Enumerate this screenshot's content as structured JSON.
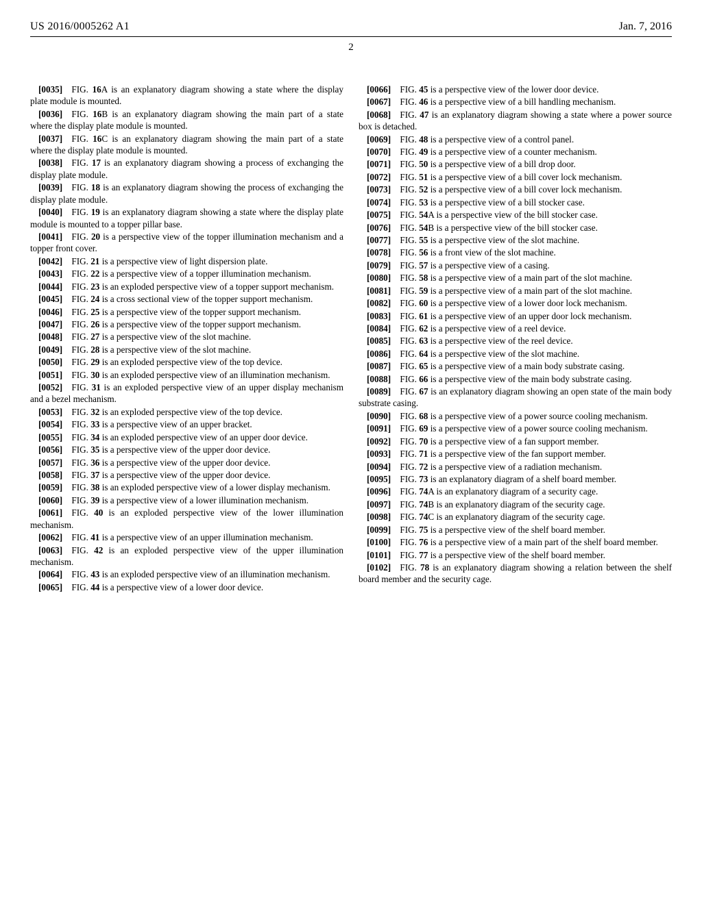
{
  "header": {
    "pubnum": "US 2016/0005262 A1",
    "pubdate": "Jan. 7, 2016",
    "pagenum": "2"
  },
  "entries": [
    {
      "id": "[0035]",
      "fig": "16",
      "suffix": "A",
      "text": " is an explanatory diagram showing a state where the display plate module is mounted."
    },
    {
      "id": "[0036]",
      "fig": "16",
      "suffix": "B",
      "text": " is an explanatory diagram showing the main part of a state where the display plate module is mounted."
    },
    {
      "id": "[0037]",
      "fig": "16",
      "suffix": "C",
      "text": " is an explanatory diagram showing the main part of a state where the display plate module is mounted."
    },
    {
      "id": "[0038]",
      "fig": "17",
      "suffix": "",
      "text": " is an explanatory diagram showing a process of exchanging the display plate module."
    },
    {
      "id": "[0039]",
      "fig": "18",
      "suffix": "",
      "text": " is an explanatory diagram showing the process of exchanging the display plate module."
    },
    {
      "id": "[0040]",
      "fig": "19",
      "suffix": "",
      "text": " is an explanatory diagram showing a state where the display plate module is mounted to a topper pillar base."
    },
    {
      "id": "[0041]",
      "fig": "20",
      "suffix": "",
      "text": " is a perspective view of the topper illumination mechanism and a topper front cover."
    },
    {
      "id": "[0042]",
      "fig": "21",
      "suffix": "",
      "text": " is a perspective view of light dispersion plate."
    },
    {
      "id": "[0043]",
      "fig": "22",
      "suffix": "",
      "text": " is a perspective view of a topper illumination mechanism."
    },
    {
      "id": "[0044]",
      "fig": "23",
      "suffix": "",
      "text": " is an exploded perspective view of a topper support mechanism."
    },
    {
      "id": "[0045]",
      "fig": "24",
      "suffix": "",
      "text": " is a cross sectional view of the topper support mechanism."
    },
    {
      "id": "[0046]",
      "fig": "25",
      "suffix": "",
      "text": " is a perspective view of the topper support mechanism."
    },
    {
      "id": "[0047]",
      "fig": "26",
      "suffix": "",
      "text": " is a perspective view of the topper support mechanism."
    },
    {
      "id": "[0048]",
      "fig": "27",
      "suffix": "",
      "text": " is a perspective view of the slot machine."
    },
    {
      "id": "[0049]",
      "fig": "28",
      "suffix": "",
      "text": " is a perspective view of the slot machine."
    },
    {
      "id": "[0050]",
      "fig": "29",
      "suffix": "",
      "text": " is an exploded perspective view of the top device."
    },
    {
      "id": "[0051]",
      "fig": "30",
      "suffix": "",
      "text": " is an exploded perspective view of an illumination mechanism."
    },
    {
      "id": "[0052]",
      "fig": "31",
      "suffix": "",
      "text": " is an exploded perspective view of an upper display mechanism and a bezel mechanism."
    },
    {
      "id": "[0053]",
      "fig": "32",
      "suffix": "",
      "text": " is an exploded perspective view of the top device."
    },
    {
      "id": "[0054]",
      "fig": "33",
      "suffix": "",
      "text": " is a perspective view of an upper bracket."
    },
    {
      "id": "[0055]",
      "fig": "34",
      "suffix": "",
      "text": " is an exploded perspective view of an upper door device."
    },
    {
      "id": "[0056]",
      "fig": "35",
      "suffix": "",
      "text": " is a perspective view of the upper door device."
    },
    {
      "id": "[0057]",
      "fig": "36",
      "suffix": "",
      "text": " is a perspective view of the upper door device."
    },
    {
      "id": "[0058]",
      "fig": "37",
      "suffix": "",
      "text": " is a perspective view of the upper door device."
    },
    {
      "id": "[0059]",
      "fig": "38",
      "suffix": "",
      "text": " is an exploded perspective view of a lower display mechanism."
    },
    {
      "id": "[0060]",
      "fig": "39",
      "suffix": "",
      "text": " is a perspective view of a lower illumination mechanism."
    },
    {
      "id": "[0061]",
      "fig": "40",
      "suffix": "",
      "text": " is an exploded perspective view of the lower illumination mechanism."
    },
    {
      "id": "[0062]",
      "fig": "41",
      "suffix": "",
      "text": " is a perspective view of an upper illumination mechanism."
    },
    {
      "id": "[0063]",
      "fig": "42",
      "suffix": "",
      "text": " is an exploded perspective view of the upper illumination mechanism."
    },
    {
      "id": "[0064]",
      "fig": "43",
      "suffix": "",
      "text": " is an exploded perspective view of an illumination mechanism."
    },
    {
      "id": "[0065]",
      "fig": "44",
      "suffix": "",
      "text": " is a perspective view of a lower door device."
    },
    {
      "id": "[0066]",
      "fig": "45",
      "suffix": "",
      "text": " is a perspective view of the lower door device."
    },
    {
      "id": "[0067]",
      "fig": "46",
      "suffix": "",
      "text": " is a perspective view of a bill handling mechanism."
    },
    {
      "id": "[0068]",
      "fig": "47",
      "suffix": "",
      "text": " is an explanatory diagram showing a state where a power source box is detached."
    },
    {
      "id": "[0069]",
      "fig": "48",
      "suffix": "",
      "text": " is a perspective view of a control panel."
    },
    {
      "id": "[0070]",
      "fig": "49",
      "suffix": "",
      "text": " is a perspective view of a counter mechanism."
    },
    {
      "id": "[0071]",
      "fig": "50",
      "suffix": "",
      "text": " is a perspective view of a bill drop door."
    },
    {
      "id": "[0072]",
      "fig": "51",
      "suffix": "",
      "text": " is a perspective view of a bill cover lock mechanism."
    },
    {
      "id": "[0073]",
      "fig": "52",
      "suffix": "",
      "text": " is a perspective view of a bill cover lock mechanism."
    },
    {
      "id": "[0074]",
      "fig": "53",
      "suffix": "",
      "text": " is a perspective view of a bill stocker case."
    },
    {
      "id": "[0075]",
      "fig": "54",
      "suffix": "A",
      "text": " is a perspective view of the bill stocker case."
    },
    {
      "id": "[0076]",
      "fig": "54",
      "suffix": "B",
      "text": " is a perspective view of the bill stocker case."
    },
    {
      "id": "[0077]",
      "fig": "55",
      "suffix": "",
      "text": " is a perspective view of the slot machine."
    },
    {
      "id": "[0078]",
      "fig": "56",
      "suffix": "",
      "text": " is a front view of the slot machine."
    },
    {
      "id": "[0079]",
      "fig": "57",
      "suffix": "",
      "text": " is a perspective view of a casing."
    },
    {
      "id": "[0080]",
      "fig": "58",
      "suffix": "",
      "text": " is a perspective view of a main part of the slot machine."
    },
    {
      "id": "[0081]",
      "fig": "59",
      "suffix": "",
      "text": " is a perspective view of a main part of the slot machine."
    },
    {
      "id": "[0082]",
      "fig": "60",
      "suffix": "",
      "text": " is a perspective view of a lower door lock mechanism."
    },
    {
      "id": "[0083]",
      "fig": "61",
      "suffix": "",
      "text": " is a perspective view of an upper door lock mechanism."
    },
    {
      "id": "[0084]",
      "fig": "62",
      "suffix": "",
      "text": " is a perspective view of a reel device."
    },
    {
      "id": "[0085]",
      "fig": "63",
      "suffix": "",
      "text": " is a perspective view of the reel device."
    },
    {
      "id": "[0086]",
      "fig": "64",
      "suffix": "",
      "text": " is a perspective view of the slot machine."
    },
    {
      "id": "[0087]",
      "fig": "65",
      "suffix": "",
      "text": " is a perspective view of a main body substrate casing."
    },
    {
      "id": "[0088]",
      "fig": "66",
      "suffix": "",
      "text": " is a perspective view of the main body substrate casing."
    },
    {
      "id": "[0089]",
      "fig": "67",
      "suffix": "",
      "text": " is an explanatory diagram showing an open state of the main body substrate casing."
    },
    {
      "id": "[0090]",
      "fig": "68",
      "suffix": "",
      "text": " is a perspective view of a power source cooling mechanism."
    },
    {
      "id": "[0091]",
      "fig": "69",
      "suffix": "",
      "text": " is a perspective view of a power source cooling mechanism."
    },
    {
      "id": "[0092]",
      "fig": "70",
      "suffix": "",
      "text": " is a perspective view of a fan support member."
    },
    {
      "id": "[0093]",
      "fig": "71",
      "suffix": "",
      "text": " is a perspective view of the fan support member."
    },
    {
      "id": "[0094]",
      "fig": "72",
      "suffix": "",
      "text": " is a perspective view of a radiation mechanism."
    },
    {
      "id": "[0095]",
      "fig": "73",
      "suffix": "",
      "text": " is an explanatory diagram of a shelf board member."
    },
    {
      "id": "[0096]",
      "fig": "74",
      "suffix": "A",
      "text": " is an explanatory diagram of a security cage."
    },
    {
      "id": "[0097]",
      "fig": "74",
      "suffix": "B",
      "text": " is an explanatory diagram of the security cage."
    },
    {
      "id": "[0098]",
      "fig": "74",
      "suffix": "C",
      "text": " is an explanatory diagram of the security cage."
    },
    {
      "id": "[0099]",
      "fig": "75",
      "suffix": "",
      "text": " is a perspective view of the shelf board member."
    },
    {
      "id": "[0100]",
      "fig": "76",
      "suffix": "",
      "text": " is a perspective view of a main part of the shelf board member."
    },
    {
      "id": "[0101]",
      "fig": "77",
      "suffix": "",
      "text": " is a perspective view of the shelf board member."
    },
    {
      "id": "[0102]",
      "fig": "78",
      "suffix": "",
      "text": " is an explanatory diagram showing a relation between the shelf board member and the security cage."
    }
  ]
}
